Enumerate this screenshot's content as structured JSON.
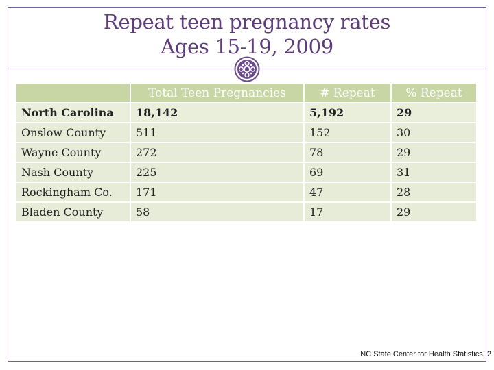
{
  "slide": {
    "title_line1": "Repeat teen pregnancy rates",
    "title_line2": "Ages 15-19, 2009",
    "source": "NC State Center for Health Statistics, 2"
  },
  "table": {
    "headers": [
      "",
      "Total Teen Pregnancies",
      "# Repeat",
      "% Repeat"
    ],
    "rows": [
      [
        "North Carolina",
        "18,142",
        "5,192",
        "29"
      ],
      [
        "Onslow County",
        "511",
        "152",
        "30"
      ],
      [
        "Wayne County",
        "272",
        "78",
        "29"
      ],
      [
        "Nash County",
        "225",
        "69",
        "31"
      ],
      [
        "Rockingham Co.",
        "171",
        "47",
        "28"
      ],
      [
        "Bladen County",
        "58",
        "17",
        "29"
      ]
    ]
  },
  "colors": {
    "title": "#5f3d7d",
    "header_fill": "#c7d6a4",
    "row_fill": "#e6ecd8",
    "frame": "#7a5a94"
  },
  "icons": {
    "emblem": "ornament-emblem-icon"
  }
}
